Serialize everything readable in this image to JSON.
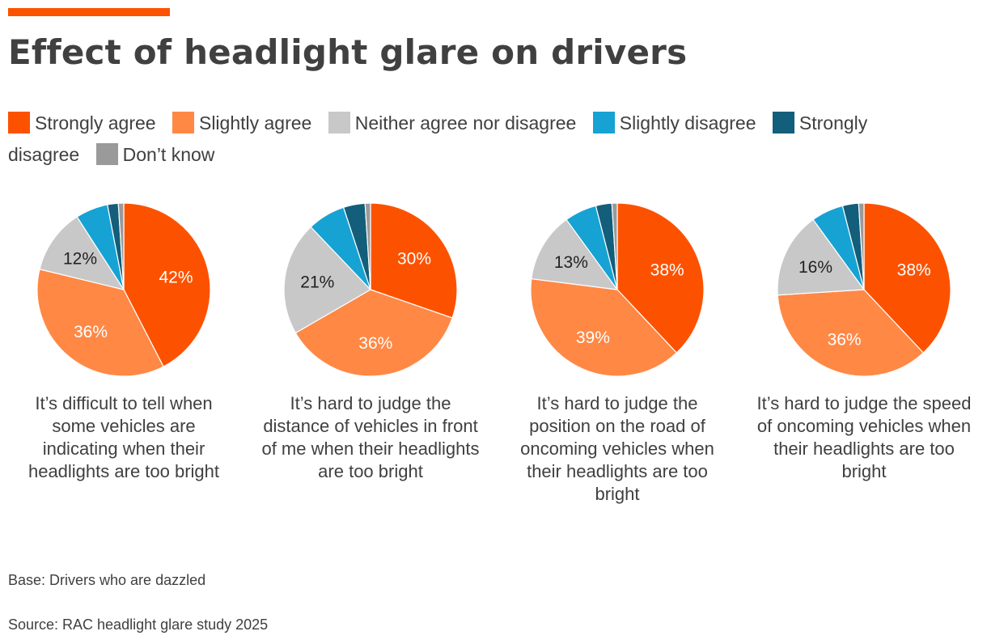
{
  "title": "Effect of headlight glare on drivers",
  "legend": [
    {
      "label": "Strongly agree",
      "color": "#fc5200"
    },
    {
      "label": "Slightly agree",
      "color": "#ff8845"
    },
    {
      "label": "Neither agree nor disagree",
      "color": "#c8c8c8"
    },
    {
      "label": "Slightly disagree",
      "color": "#17a2d4"
    },
    {
      "label": "Strongly disagree",
      "color": "#135e7a"
    },
    {
      "label": "Don’t know",
      "color": "#9a9a9a"
    }
  ],
  "base_text": "Base: Drivers who are dazzled",
  "source_text": "Source: RAC headlight glare study 2025",
  "chart_data": [
    {
      "type": "pie",
      "title": "It’s difficult to tell when some vehicles are indicating when their headlights are too bright",
      "categories": [
        "Strongly agree",
        "Slightly agree",
        "Neither agree nor disagree",
        "Slightly disagree",
        "Strongly disagree",
        "Don’t know"
      ],
      "values": [
        42,
        36,
        12,
        6,
        2,
        1
      ],
      "labels": [
        "42%",
        "36%",
        "12%",
        "",
        "",
        ""
      ]
    },
    {
      "type": "pie",
      "title": "It’s hard to judge the distance of vehicles in front of me when their headlights are too bright",
      "categories": [
        "Strongly agree",
        "Slightly agree",
        "Neither agree nor disagree",
        "Slightly disagree",
        "Strongly disagree",
        "Don’t know"
      ],
      "values": [
        30,
        36,
        21,
        7,
        4,
        1
      ],
      "labels": [
        "30%",
        "36%",
        "21%",
        "",
        "",
        ""
      ]
    },
    {
      "type": "pie",
      "title": "It’s hard to judge the position on the road of oncoming vehicles when their headlights are too bright",
      "categories": [
        "Strongly agree",
        "Slightly agree",
        "Neither agree nor disagree",
        "Slightly disagree",
        "Strongly disagree",
        "Don’t know"
      ],
      "values": [
        38,
        39,
        13,
        6,
        3,
        1
      ],
      "labels": [
        "38%",
        "39%",
        "13%",
        "",
        "",
        ""
      ]
    },
    {
      "type": "pie",
      "title": "It’s hard to judge the speed of oncoming vehicles when their headlights are too bright",
      "categories": [
        "Strongly agree",
        "Slightly agree",
        "Neither agree nor disagree",
        "Slightly disagree",
        "Strongly disagree",
        "Don’t know"
      ],
      "values": [
        38,
        36,
        16,
        6,
        3,
        1
      ],
      "labels": [
        "38%",
        "36%",
        "16%",
        "",
        "",
        ""
      ]
    }
  ]
}
